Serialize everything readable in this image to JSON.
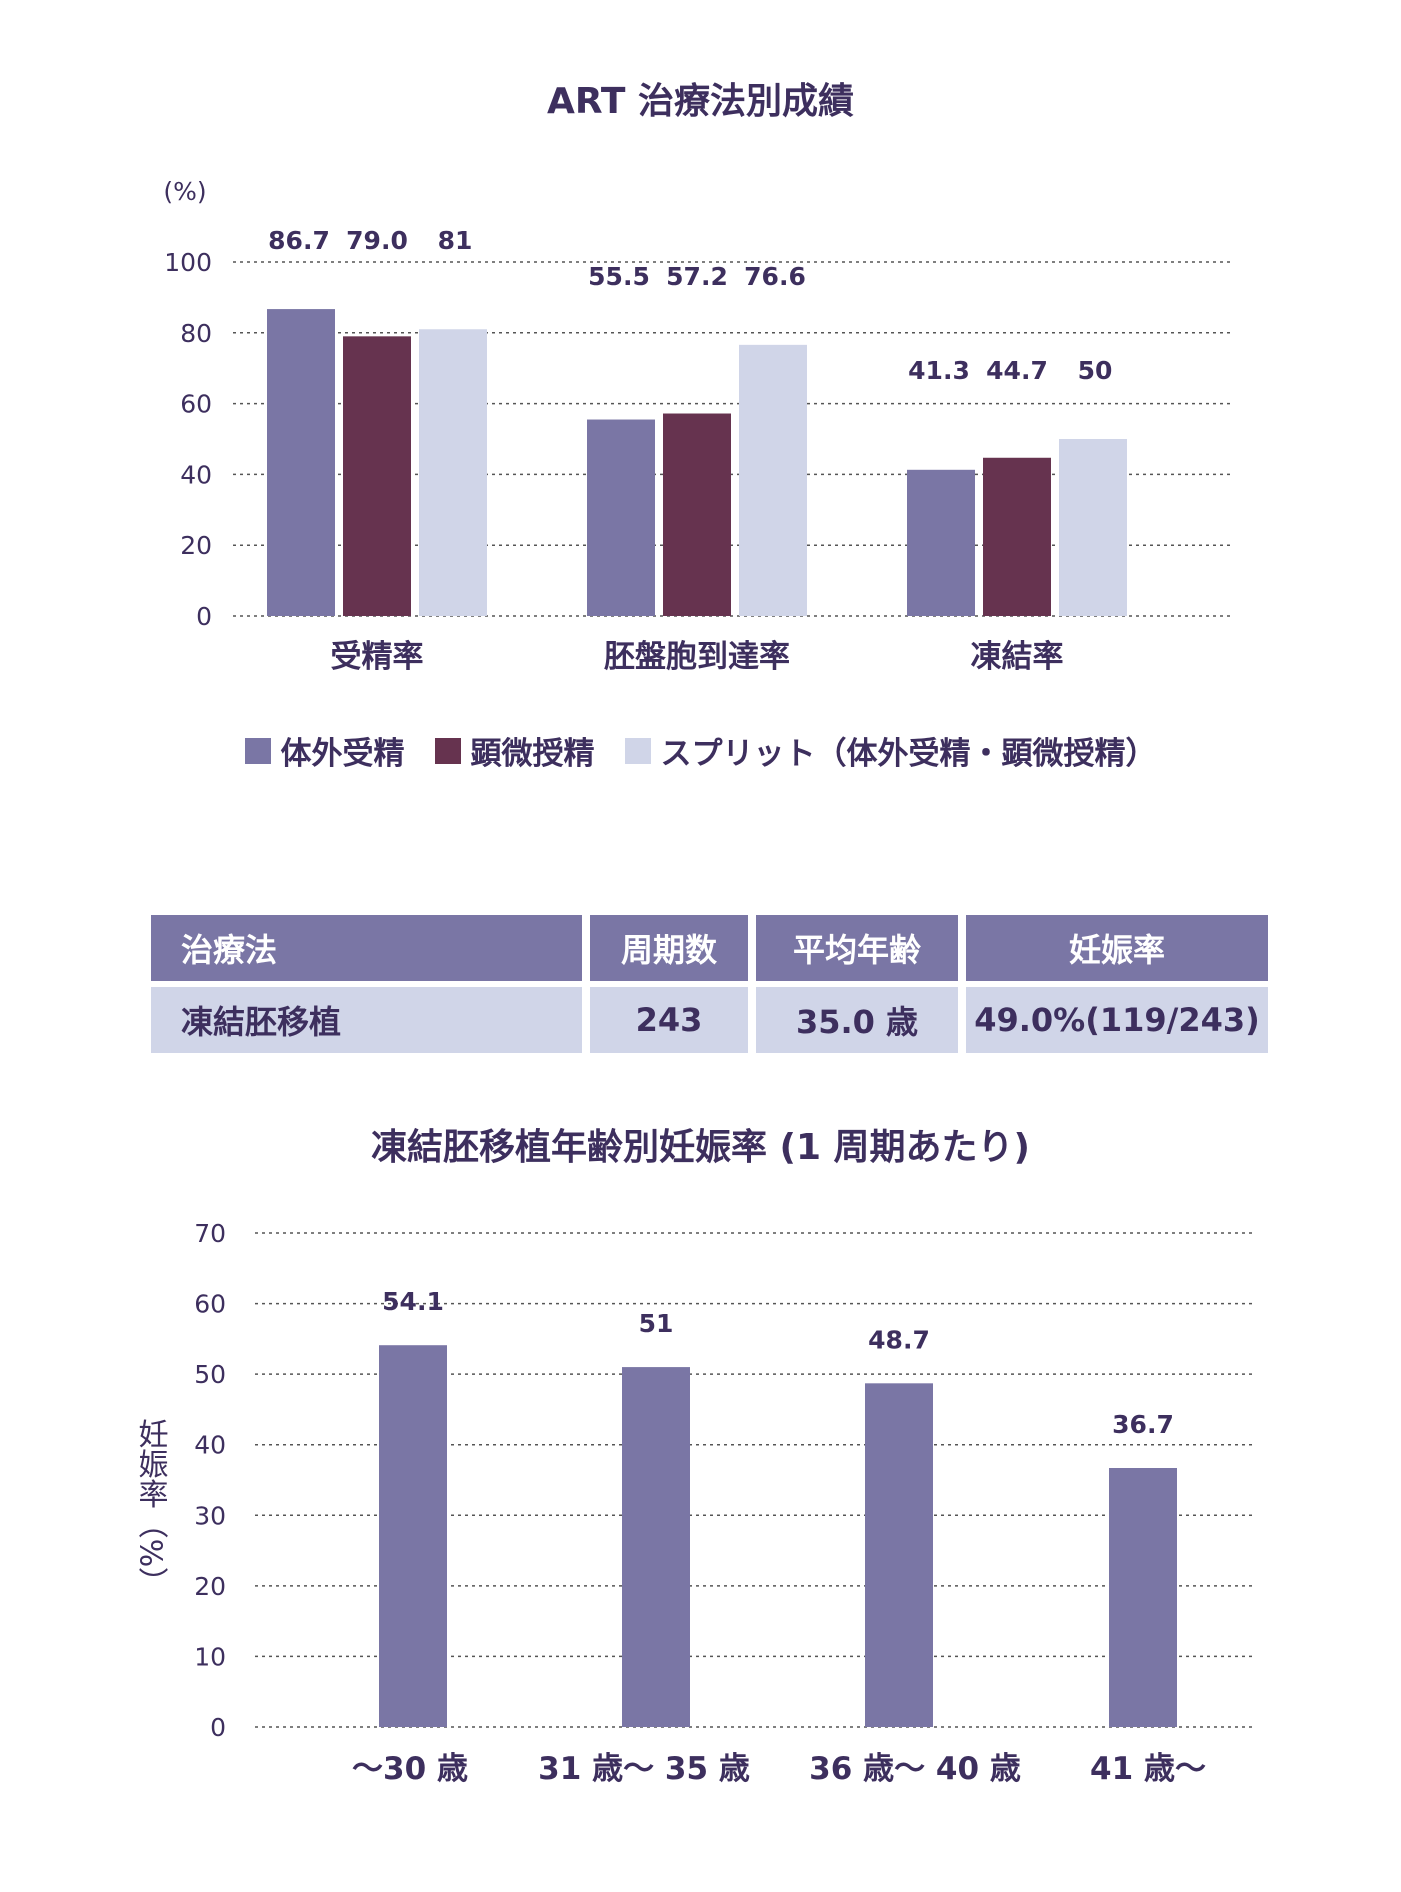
{
  "colors": {
    "text": "#3d2f5e",
    "grid": "#555555",
    "ivf": "#7a76a5",
    "icsi": "#66334f",
    "split": "#d0d5e8",
    "header_bg": "#7a76a5",
    "row_bg": "#d0d5e8"
  },
  "chart_data": [
    {
      "type": "bar",
      "title": "ART 治療法別成績",
      "ylabel": "(%)",
      "ylim": [
        0,
        100
      ],
      "yticks": [
        "0",
        "20",
        "40",
        "60",
        "80",
        "100"
      ],
      "categories": [
        "受精率",
        "胚盤胞到達率",
        "凍結率"
      ],
      "series": [
        {
          "name": "体外受精",
          "values": [
            86.7,
            55.5,
            41.3
          ],
          "labels": [
            "86.7",
            "55.5",
            "41.3"
          ]
        },
        {
          "name": "顕微授精",
          "values": [
            79.0,
            57.2,
            44.7
          ],
          "labels": [
            "79.0",
            "57.2",
            "44.7"
          ]
        },
        {
          "name": "スプリット（体外受精・顕微授精）",
          "values": [
            81,
            76.6,
            50
          ],
          "labels": [
            "81",
            "76.6",
            "50"
          ]
        }
      ],
      "grid": true,
      "legend": "bottom"
    },
    {
      "type": "bar",
      "title": "凍結胚移植年齢別妊娠率 (1 周期あたり)",
      "ylabel": "妊娠率（%）",
      "ylim": [
        0,
        70
      ],
      "yticks": [
        "0",
        "10",
        "20",
        "30",
        "40",
        "50",
        "60",
        "70"
      ],
      "categories": [
        "～30 歳",
        "31 歳～ 35 歳",
        "36 歳～ 40 歳",
        "41 歳～"
      ],
      "values": [
        54.1,
        51,
        48.7,
        36.7
      ],
      "labels": [
        "54.1",
        "51",
        "48.7",
        "36.7"
      ],
      "grid": true
    }
  ],
  "table": {
    "headers": [
      "治療法",
      "周期数",
      "平均年齢",
      "妊娠率"
    ],
    "rows": [
      [
        "凍結胚移植",
        "243",
        "35.0 歳",
        "49.0%(119/243)"
      ]
    ]
  }
}
